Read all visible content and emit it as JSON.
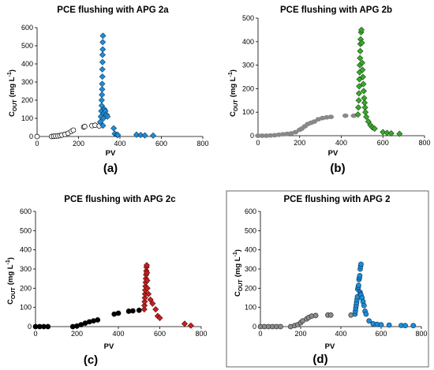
{
  "chart_data": [
    {
      "type": "scatter",
      "title": "PCE flushing with APG 2a",
      "xlabel": "PV",
      "ylabel_main": "C",
      "ylabel_sub": "OUT",
      "ylabel_unit": "(mg L",
      "ylabel_exp": "-1",
      "ylabel_close": ")",
      "panel_label": "(a)",
      "xlim": [
        0,
        800
      ],
      "ylim": [
        0,
        600
      ],
      "xticks": [
        "0",
        "200",
        "400",
        "600",
        "800"
      ],
      "yticks": [
        "0",
        "100",
        "200",
        "300",
        "400",
        "500",
        "600"
      ],
      "series": [
        {
          "marker": "circle",
          "fill": "#ffffff",
          "stroke": "#000000",
          "points": [
            [
              0,
              0
            ],
            [
              70,
              0
            ],
            [
              80,
              1
            ],
            [
              90,
              2
            ],
            [
              100,
              3
            ],
            [
              110,
              5
            ],
            [
              120,
              8
            ],
            [
              135,
              12
            ],
            [
              150,
              18
            ],
            [
              165,
              28
            ],
            [
              175,
              35
            ],
            [
              225,
              52
            ],
            [
              230,
              55
            ],
            [
              265,
              60
            ],
            [
              280,
              62
            ],
            [
              300,
              58
            ]
          ]
        },
        {
          "marker": "diamond",
          "fill": "#1f8dd6",
          "stroke": "#0a3d66",
          "points": [
            [
              305,
              80
            ],
            [
              308,
              110
            ],
            [
              310,
              140
            ],
            [
              312,
              170
            ],
            [
              312,
              200
            ],
            [
              313,
              230
            ],
            [
              314,
              260
            ],
            [
              314,
              290
            ],
            [
              315,
              330
            ],
            [
              315,
              370
            ],
            [
              316,
              410
            ],
            [
              316,
              450
            ],
            [
              317,
              480
            ],
            [
              317,
              520
            ],
            [
              318,
              555
            ],
            [
              318,
              60
            ],
            [
              320,
              100
            ],
            [
              322,
              130
            ],
            [
              325,
              150
            ],
            [
              330,
              140
            ],
            [
              335,
              120
            ],
            [
              340,
              110
            ],
            [
              370,
              45
            ],
            [
              375,
              15
            ],
            [
              385,
              10
            ],
            [
              390,
              8
            ],
            [
              480,
              10
            ],
            [
              500,
              8
            ],
            [
              520,
              6
            ],
            [
              560,
              5
            ]
          ]
        }
      ]
    },
    {
      "type": "scatter",
      "title": "PCE flushing with APG 2b",
      "xlabel": "PV",
      "ylabel_main": "C",
      "ylabel_sub": "OUT",
      "ylabel_unit": "(mg L",
      "ylabel_exp": "-1",
      "ylabel_close": ")",
      "panel_label": "(b)",
      "xlim": [
        0,
        800
      ],
      "ylim": [
        0,
        500
      ],
      "xticks": [
        "0",
        "200",
        "400",
        "600",
        "800"
      ],
      "yticks": [
        "0",
        "100",
        "200",
        "300",
        "400",
        "500"
      ],
      "series": [
        {
          "marker": "ellipse",
          "fill": "#888888",
          "stroke": "#888888",
          "points": [
            [
              0,
              0
            ],
            [
              20,
              0
            ],
            [
              40,
              0
            ],
            [
              60,
              1
            ],
            [
              80,
              2
            ],
            [
              100,
              4
            ],
            [
              120,
              6
            ],
            [
              140,
              8
            ],
            [
              160,
              10
            ],
            [
              180,
              15
            ],
            [
              200,
              25
            ],
            [
              210,
              30
            ],
            [
              225,
              40
            ],
            [
              240,
              50
            ],
            [
              255,
              55
            ],
            [
              270,
              60
            ],
            [
              290,
              70
            ],
            [
              310,
              75
            ],
            [
              330,
              78
            ],
            [
              350,
              80
            ],
            [
              420,
              85
            ],
            [
              460,
              85
            ]
          ]
        },
        {
          "marker": "diamond",
          "fill": "#3aa82c",
          "stroke": "#144d10",
          "points": [
            [
              480,
              90
            ],
            [
              482,
              120
            ],
            [
              484,
              150
            ],
            [
              485,
              180
            ],
            [
              486,
              210
            ],
            [
              487,
              240
            ],
            [
              488,
              270
            ],
            [
              489,
              300
            ],
            [
              490,
              330
            ],
            [
              491,
              360
            ],
            [
              492,
              390
            ],
            [
              493,
              410
            ],
            [
              495,
              440
            ],
            [
              497,
              450
            ],
            [
              499,
              395
            ],
            [
              500,
              310
            ],
            [
              502,
              280
            ],
            [
              504,
              250
            ],
            [
              506,
              220
            ],
            [
              508,
              190
            ],
            [
              510,
              160
            ],
            [
              512,
              140
            ],
            [
              514,
              120
            ],
            [
              516,
              100
            ],
            [
              520,
              80
            ],
            [
              530,
              60
            ],
            [
              540,
              45
            ],
            [
              550,
              35
            ],
            [
              560,
              30
            ],
            [
              600,
              15
            ],
            [
              620,
              12
            ],
            [
              640,
              10
            ],
            [
              680,
              8
            ]
          ]
        }
      ]
    },
    {
      "type": "scatter",
      "title": "PCE flushing with APG 2c",
      "xlabel": "PV",
      "ylabel_main": "C",
      "ylabel_sub": "OUT",
      "ylabel_unit": "(mg L",
      "ylabel_exp": "-1",
      "ylabel_close": ")",
      "panel_label": "(c)",
      "xlim": [
        0,
        800
      ],
      "ylim": [
        0,
        600
      ],
      "xticks": [
        "0",
        "200",
        "400",
        "600",
        "800"
      ],
      "yticks": [
        "0",
        "100",
        "200",
        "300",
        "400",
        "500",
        "600"
      ],
      "series": [
        {
          "marker": "circle",
          "fill": "#000000",
          "stroke": "#000000",
          "points": [
            [
              0,
              0
            ],
            [
              20,
              0
            ],
            [
              40,
              0
            ],
            [
              60,
              0
            ],
            [
              180,
              0
            ],
            [
              200,
              3
            ],
            [
              220,
              10
            ],
            [
              240,
              18
            ],
            [
              260,
              25
            ],
            [
              280,
              30
            ],
            [
              300,
              35
            ],
            [
              380,
              65
            ],
            [
              400,
              70
            ],
            [
              450,
              80
            ],
            [
              470,
              82
            ],
            [
              500,
              85
            ]
          ]
        },
        {
          "marker": "diamond",
          "fill": "#c42020",
          "stroke": "#5a0a0a",
          "points": [
            [
              525,
              90
            ],
            [
              526,
              110
            ],
            [
              527,
              130
            ],
            [
              528,
              150
            ],
            [
              529,
              170
            ],
            [
              530,
              190
            ],
            [
              531,
              210
            ],
            [
              532,
              230
            ],
            [
              533,
              250
            ],
            [
              534,
              270
            ],
            [
              535,
              290
            ],
            [
              536,
              310
            ],
            [
              537,
              320
            ],
            [
              538,
              280
            ],
            [
              539,
              240
            ],
            [
              540,
              200
            ],
            [
              545,
              170
            ],
            [
              555,
              140
            ],
            [
              565,
              120
            ],
            [
              580,
              90
            ],
            [
              590,
              55
            ],
            [
              600,
              45
            ],
            [
              720,
              15
            ],
            [
              750,
              5
            ]
          ]
        }
      ]
    },
    {
      "type": "scatter",
      "title": "PCE flushing with APG 2",
      "xlabel": "PV",
      "ylabel_main": "C",
      "ylabel_sub": "OUT",
      "ylabel_unit": "(mg L",
      "ylabel_exp": "-1",
      "ylabel_close": ")",
      "panel_label": "(d)",
      "xlim": [
        0,
        800
      ],
      "ylim": [
        0,
        600
      ],
      "xticks": [
        "0",
        "200",
        "400",
        "600",
        "800"
      ],
      "yticks": [
        "0",
        "100",
        "200",
        "300",
        "400",
        "500",
        "600"
      ],
      "series": [
        {
          "marker": "circle",
          "fill": "#8c8c8c",
          "stroke": "#333333",
          "points": [
            [
              0,
              0
            ],
            [
              20,
              0
            ],
            [
              40,
              0
            ],
            [
              60,
              0
            ],
            [
              80,
              0
            ],
            [
              100,
              0
            ],
            [
              150,
              0
            ],
            [
              170,
              5
            ],
            [
              185,
              10
            ],
            [
              200,
              20
            ],
            [
              210,
              30
            ],
            [
              230,
              40
            ],
            [
              240,
              48
            ],
            [
              255,
              55
            ],
            [
              275,
              58
            ],
            [
              335,
              60
            ],
            [
              350,
              60
            ],
            [
              450,
              60
            ]
          ]
        },
        {
          "marker": "circle",
          "fill": "#1f8dd6",
          "stroke": "#0a3d66",
          "points": [
            [
              470,
              65
            ],
            [
              472,
              80
            ],
            [
              474,
              95
            ],
            [
              476,
              110
            ],
            [
              478,
              125
            ],
            [
              480,
              140
            ],
            [
              482,
              155
            ],
            [
              484,
              195
            ],
            [
              486,
              205
            ],
            [
              488,
              215
            ],
            [
              490,
              245
            ],
            [
              492,
              255
            ],
            [
              494,
              265
            ],
            [
              496,
              300
            ],
            [
              498,
              315
            ],
            [
              500,
              325
            ],
            [
              495,
              180
            ],
            [
              497,
              170
            ],
            [
              500,
              165
            ],
            [
              505,
              150
            ],
            [
              510,
              130
            ],
            [
              515,
              110
            ],
            [
              520,
              80
            ],
            [
              525,
              65
            ],
            [
              540,
              30
            ],
            [
              560,
              15
            ],
            [
              580,
              12
            ],
            [
              600,
              10
            ],
            [
              640,
              8
            ],
            [
              700,
              6
            ],
            [
              720,
              5
            ],
            [
              760,
              5
            ]
          ]
        }
      ]
    }
  ]
}
